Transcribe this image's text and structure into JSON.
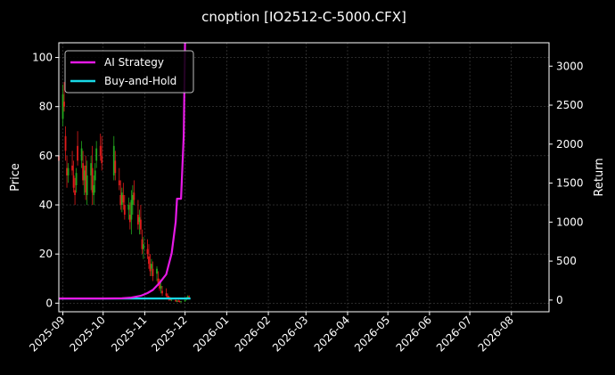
{
  "chart_data": {
    "type": "line",
    "title": "cnoption [IO2512-C-5000.CFX]",
    "ylabel_left": "Price",
    "ylabel_right": "Return",
    "ylim_left": [
      -3.5,
      106
    ],
    "ylim_right": [
      -150,
      3300
    ],
    "yticks_left": [
      "0",
      "20",
      "40",
      "60",
      "80",
      "100"
    ],
    "yticks_right": [
      "0",
      "500",
      "1000",
      "1500",
      "2000",
      "2500",
      "3000"
    ],
    "xlim": [
      "2025-08-29",
      "2026-08-29"
    ],
    "xticks": [
      "2025-09",
      "2025-10",
      "2025-11",
      "2025-12",
      "2026-01",
      "2026-02",
      "2026-03",
      "2026-04",
      "2026-05",
      "2026-06",
      "2026-07",
      "2026-08"
    ],
    "grid": true,
    "legend_position": "top-left",
    "colors": {
      "background": "#000000",
      "ai_strategy": "#e619e6",
      "buy_and_hold": "#19d9e6",
      "candle_up": "#22a81e",
      "candle_down": "#e01b1b",
      "grid": "#555555"
    },
    "series": [
      {
        "name": "AI Strategy",
        "axis": "right",
        "points": [
          [
            "2025-08-29",
            20
          ],
          [
            "2025-09-15",
            20
          ],
          [
            "2025-10-01",
            20
          ],
          [
            "2025-10-15",
            22
          ],
          [
            "2025-10-22",
            32
          ],
          [
            "2025-10-29",
            55
          ],
          [
            "2025-11-03",
            90
          ],
          [
            "2025-11-07",
            130
          ],
          [
            "2025-11-12",
            220
          ],
          [
            "2025-11-17",
            330
          ],
          [
            "2025-11-21",
            600
          ],
          [
            "2025-11-24",
            1000
          ],
          [
            "2025-11-25",
            1300
          ],
          [
            "2025-11-28",
            1300
          ],
          [
            "2025-11-29",
            1700
          ],
          [
            "2025-11-30",
            2100
          ],
          [
            "2025-12-01",
            3300
          ]
        ]
      },
      {
        "name": "Buy-and-Hold",
        "axis": "right",
        "points": [
          [
            "2025-08-29",
            20
          ],
          [
            "2025-12-05",
            20
          ]
        ]
      },
      {
        "name": "Price",
        "axis": "left",
        "type": "candlestick",
        "ohlc": [
          [
            "2025-08-29",
            60,
            66,
            55,
            58
          ],
          [
            "2025-09-01",
            75,
            89,
            72,
            85
          ],
          [
            "2025-09-02",
            82,
            90,
            78,
            80
          ],
          [
            "2025-09-03",
            68,
            72,
            58,
            62
          ],
          [
            "2025-09-04",
            55,
            60,
            47,
            52
          ],
          [
            "2025-09-05",
            52,
            57,
            49,
            55
          ],
          [
            "2025-09-08",
            56,
            62,
            52,
            54
          ],
          [
            "2025-09-09",
            52,
            58,
            45,
            47
          ],
          [
            "2025-09-10",
            46,
            51,
            40,
            44
          ],
          [
            "2025-09-11",
            48,
            55,
            45,
            53
          ],
          [
            "2025-09-12",
            64,
            70,
            56,
            58
          ],
          [
            "2025-09-15",
            58,
            66,
            55,
            63
          ],
          [
            "2025-09-16",
            57,
            62,
            48,
            50
          ],
          [
            "2025-09-17",
            50,
            56,
            44,
            54
          ],
          [
            "2025-09-18",
            56,
            60,
            42,
            45
          ],
          [
            "2025-09-19",
            44,
            58,
            40,
            52
          ],
          [
            "2025-09-22",
            52,
            60,
            46,
            57
          ],
          [
            "2025-09-23",
            55,
            64,
            40,
            45
          ],
          [
            "2025-09-24",
            44,
            52,
            40,
            48
          ],
          [
            "2025-09-25",
            50,
            57,
            45,
            54
          ],
          [
            "2025-09-26",
            58,
            66,
            55,
            63
          ],
          [
            "2025-09-29",
            64,
            69,
            58,
            60
          ],
          [
            "2025-09-30",
            60,
            68,
            54,
            57
          ],
          [
            "2025-10-09",
            52,
            68,
            50,
            64
          ],
          [
            "2025-10-10",
            58,
            62,
            50,
            53
          ],
          [
            "2025-10-13",
            50,
            55,
            46,
            48
          ],
          [
            "2025-10-14",
            44,
            50,
            38,
            40
          ],
          [
            "2025-10-15",
            40,
            47,
            37,
            45
          ],
          [
            "2025-10-16",
            44,
            49,
            38,
            41
          ],
          [
            "2025-10-17",
            40,
            44,
            34,
            36
          ],
          [
            "2025-10-20",
            38,
            43,
            34,
            40
          ],
          [
            "2025-10-21",
            36,
            41,
            30,
            33
          ],
          [
            "2025-10-22",
            34,
            46,
            28,
            42
          ],
          [
            "2025-10-23",
            40,
            48,
            36,
            44
          ],
          [
            "2025-10-24",
            45,
            50,
            40,
            42
          ],
          [
            "2025-10-27",
            36,
            42,
            30,
            32
          ],
          [
            "2025-10-28",
            33,
            38,
            28,
            35
          ],
          [
            "2025-10-29",
            34,
            40,
            28,
            30
          ],
          [
            "2025-10-30",
            26,
            30,
            20,
            22
          ],
          [
            "2025-10-31",
            22,
            27,
            18,
            24
          ],
          [
            "2025-11-03",
            22,
            26,
            18,
            20
          ],
          [
            "2025-11-04",
            19,
            24,
            14,
            16
          ],
          [
            "2025-11-05",
            16,
            20,
            11,
            13
          ],
          [
            "2025-11-06",
            14,
            18,
            11,
            16
          ],
          [
            "2025-11-07",
            14,
            17,
            9,
            11
          ],
          [
            "2025-11-10",
            12,
            15,
            9,
            14
          ],
          [
            "2025-11-11",
            10,
            13,
            7,
            8
          ],
          [
            "2025-11-12",
            8,
            10,
            5,
            6
          ],
          [
            "2025-11-13",
            6,
            9,
            4,
            7
          ],
          [
            "2025-11-14",
            5,
            7,
            3,
            4
          ],
          [
            "2025-11-17",
            4,
            6,
            2.5,
            3
          ],
          [
            "2025-11-18",
            3,
            4,
            1.5,
            2
          ],
          [
            "2025-11-19",
            2.5,
            3,
            1,
            1.5
          ],
          [
            "2025-11-20",
            1.8,
            2.5,
            1,
            1.2
          ],
          [
            "2025-11-21",
            1.5,
            2,
            0.8,
            1.8
          ],
          [
            "2025-11-24",
            1.2,
            1.6,
            0.5,
            0.8
          ],
          [
            "2025-11-25",
            0.8,
            1.2,
            0.4,
            1
          ],
          [
            "2025-11-26",
            1,
            1.4,
            0.5,
            0.6
          ],
          [
            "2025-11-27",
            0.8,
            1.1,
            0.3,
            0.5
          ],
          [
            "2025-11-28",
            0.6,
            0.9,
            0.3,
            0.7
          ],
          [
            "2025-12-01",
            0.8,
            1.5,
            0.5,
            1.2
          ],
          [
            "2025-12-02",
            1.5,
            2.5,
            1.2,
            2.2
          ],
          [
            "2025-12-03",
            2.2,
            3.2,
            1.8,
            2.8
          ],
          [
            "2025-12-04",
            2.8,
            3.2,
            2,
            2.4
          ]
        ]
      }
    ]
  }
}
